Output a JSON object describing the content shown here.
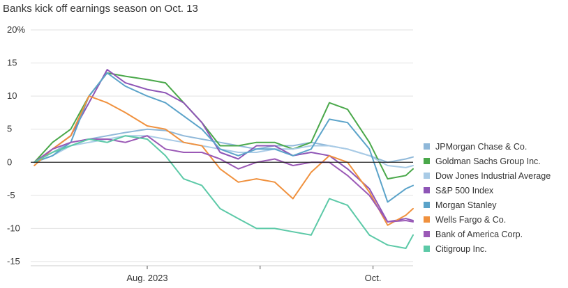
{
  "chart_data": {
    "type": "line",
    "title": "Banks kick off earnings season on Oct. 13",
    "xlabel": "",
    "ylabel": "",
    "ylim": [
      -15,
      20
    ],
    "y_ticks": [
      {
        "value": 20,
        "label": "20%"
      },
      {
        "value": 15,
        "label": "15"
      },
      {
        "value": 10,
        "label": "10"
      },
      {
        "value": 5,
        "label": "5"
      },
      {
        "value": 0,
        "label": "0"
      },
      {
        "value": -5,
        "label": "-5"
      },
      {
        "value": -10,
        "label": "-10"
      },
      {
        "value": -15,
        "label": "-15"
      }
    ],
    "x_range": [
      "2023-06-30",
      "2023-10-13"
    ],
    "x_ticks": [
      {
        "date": "2023-08-01",
        "label": "Aug. 2023"
      },
      {
        "date": "2023-09-01",
        "label": ""
      },
      {
        "date": "2023-10-02",
        "label": "Oct."
      }
    ],
    "grid": "horizontal",
    "legend": "right",
    "series": [
      {
        "name": "JPMorgan Chase & Co.",
        "color": "#8fb8d9",
        "points": [
          [
            "2023-07-01",
            0
          ],
          [
            "2023-07-06",
            1.5
          ],
          [
            "2023-07-11",
            3
          ],
          [
            "2023-07-16",
            3.5
          ],
          [
            "2023-07-21",
            4
          ],
          [
            "2023-07-26",
            4.5
          ],
          [
            "2023-08-01",
            5
          ],
          [
            "2023-08-06",
            4.8
          ],
          [
            "2023-08-11",
            4
          ],
          [
            "2023-08-16",
            3.5
          ],
          [
            "2023-08-21",
            3
          ],
          [
            "2023-08-26",
            2.5
          ],
          [
            "2023-08-31",
            2
          ],
          [
            "2023-09-05",
            2.5
          ],
          [
            "2023-09-10",
            2.5
          ],
          [
            "2023-09-15",
            3
          ],
          [
            "2023-09-20",
            2.5
          ],
          [
            "2023-09-25",
            2
          ],
          [
            "2023-10-01",
            1
          ],
          [
            "2023-10-06",
            0
          ],
          [
            "2023-10-11",
            0.5
          ],
          [
            "2023-10-13",
            0.8
          ]
        ]
      },
      {
        "name": "Goldman Sachs Group Inc.",
        "color": "#4aa84a",
        "points": [
          [
            "2023-07-01",
            0
          ],
          [
            "2023-07-06",
            3
          ],
          [
            "2023-07-11",
            5
          ],
          [
            "2023-07-16",
            10
          ],
          [
            "2023-07-21",
            13.5
          ],
          [
            "2023-07-26",
            13
          ],
          [
            "2023-08-01",
            12.5
          ],
          [
            "2023-08-06",
            12
          ],
          [
            "2023-08-11",
            9
          ],
          [
            "2023-08-16",
            6
          ],
          [
            "2023-08-21",
            2.5
          ],
          [
            "2023-08-26",
            2.5
          ],
          [
            "2023-08-31",
            3
          ],
          [
            "2023-09-05",
            3
          ],
          [
            "2023-09-10",
            2
          ],
          [
            "2023-09-15",
            3
          ],
          [
            "2023-09-20",
            9
          ],
          [
            "2023-09-25",
            8
          ],
          [
            "2023-10-01",
            3
          ],
          [
            "2023-10-06",
            -2.5
          ],
          [
            "2023-10-11",
            -2
          ],
          [
            "2023-10-13",
            -1
          ]
        ]
      },
      {
        "name": "Dow Jones Industrial Average",
        "color": "#a9cbe6",
        "points": [
          [
            "2023-07-01",
            0
          ],
          [
            "2023-07-06",
            1
          ],
          [
            "2023-07-11",
            2.5
          ],
          [
            "2023-07-16",
            3
          ],
          [
            "2023-07-21",
            3.5
          ],
          [
            "2023-07-26",
            4
          ],
          [
            "2023-08-01",
            4
          ],
          [
            "2023-08-06",
            3.5
          ],
          [
            "2023-08-11",
            3
          ],
          [
            "2023-08-16",
            2.5
          ],
          [
            "2023-08-21",
            2
          ],
          [
            "2023-08-26",
            1.5
          ],
          [
            "2023-08-31",
            1.5
          ],
          [
            "2023-09-05",
            2
          ],
          [
            "2023-09-10",
            2
          ],
          [
            "2023-09-15",
            2.5
          ],
          [
            "2023-09-20",
            2.5
          ],
          [
            "2023-09-25",
            2
          ],
          [
            "2023-10-01",
            1
          ],
          [
            "2023-10-06",
            -0.5
          ],
          [
            "2023-10-11",
            -0.8
          ],
          [
            "2023-10-13",
            -0.5
          ]
        ]
      },
      {
        "name": "S&P 500 Index",
        "color": "#8e55b6",
        "points": [
          [
            "2023-07-01",
            0
          ],
          [
            "2023-07-06",
            2
          ],
          [
            "2023-07-11",
            4
          ],
          [
            "2023-07-16",
            9
          ],
          [
            "2023-07-21",
            14
          ],
          [
            "2023-07-26",
            12
          ],
          [
            "2023-08-01",
            11
          ],
          [
            "2023-08-06",
            10.5
          ],
          [
            "2023-08-11",
            9
          ],
          [
            "2023-08-16",
            6
          ],
          [
            "2023-08-21",
            1.5
          ],
          [
            "2023-08-26",
            0.5
          ],
          [
            "2023-08-31",
            2.5
          ],
          [
            "2023-09-05",
            2.5
          ],
          [
            "2023-09-10",
            1
          ],
          [
            "2023-09-15",
            1.5
          ],
          [
            "2023-09-20",
            1
          ],
          [
            "2023-09-25",
            -1
          ],
          [
            "2023-10-01",
            -4
          ],
          [
            "2023-10-06",
            -9
          ],
          [
            "2023-10-11",
            -8.5
          ],
          [
            "2023-10-13",
            -8.8
          ]
        ]
      },
      {
        "name": "Morgan Stanley",
        "color": "#5ba3c9",
        "points": [
          [
            "2023-07-01",
            0
          ],
          [
            "2023-07-06",
            1
          ],
          [
            "2023-07-11",
            3
          ],
          [
            "2023-07-16",
            10
          ],
          [
            "2023-07-21",
            13.5
          ],
          [
            "2023-07-26",
            11.5
          ],
          [
            "2023-08-01",
            10
          ],
          [
            "2023-08-06",
            9
          ],
          [
            "2023-08-11",
            7
          ],
          [
            "2023-08-16",
            5
          ],
          [
            "2023-08-21",
            2
          ],
          [
            "2023-08-26",
            1
          ],
          [
            "2023-08-31",
            2
          ],
          [
            "2023-09-05",
            2
          ],
          [
            "2023-09-10",
            1
          ],
          [
            "2023-09-15",
            2
          ],
          [
            "2023-09-20",
            6.5
          ],
          [
            "2023-09-25",
            6
          ],
          [
            "2023-10-01",
            2
          ],
          [
            "2023-10-06",
            -6
          ],
          [
            "2023-10-11",
            -4
          ],
          [
            "2023-10-13",
            -3.5
          ]
        ]
      },
      {
        "name": "Wells Fargo & Co.",
        "color": "#f0913e",
        "points": [
          [
            "2023-07-01",
            -0.5
          ],
          [
            "2023-07-06",
            2
          ],
          [
            "2023-07-11",
            4
          ],
          [
            "2023-07-16",
            10
          ],
          [
            "2023-07-21",
            9
          ],
          [
            "2023-07-26",
            7.5
          ],
          [
            "2023-08-01",
            5.5
          ],
          [
            "2023-08-06",
            5
          ],
          [
            "2023-08-11",
            3
          ],
          [
            "2023-08-16",
            2.5
          ],
          [
            "2023-08-21",
            -1
          ],
          [
            "2023-08-26",
            -3
          ],
          [
            "2023-08-31",
            -2.5
          ],
          [
            "2023-09-05",
            -3
          ],
          [
            "2023-09-10",
            -5.5
          ],
          [
            "2023-09-15",
            -1.5
          ],
          [
            "2023-09-20",
            1
          ],
          [
            "2023-09-25",
            0
          ],
          [
            "2023-10-01",
            -4.5
          ],
          [
            "2023-10-06",
            -9.5
          ],
          [
            "2023-10-11",
            -8
          ],
          [
            "2023-10-13",
            -7
          ]
        ]
      },
      {
        "name": "Bank of America Corp.",
        "color": "#9b59b6",
        "points": [
          [
            "2023-07-01",
            0
          ],
          [
            "2023-07-06",
            2
          ],
          [
            "2023-07-11",
            3
          ],
          [
            "2023-07-16",
            3.5
          ],
          [
            "2023-07-21",
            3.5
          ],
          [
            "2023-07-26",
            3
          ],
          [
            "2023-08-01",
            4
          ],
          [
            "2023-08-06",
            2
          ],
          [
            "2023-08-11",
            1.5
          ],
          [
            "2023-08-16",
            1.5
          ],
          [
            "2023-08-21",
            0.5
          ],
          [
            "2023-08-26",
            -1
          ],
          [
            "2023-08-31",
            0
          ],
          [
            "2023-09-05",
            0.5
          ],
          [
            "2023-09-10",
            -0.5
          ],
          [
            "2023-09-15",
            0
          ],
          [
            "2023-09-20",
            0
          ],
          [
            "2023-09-25",
            -2
          ],
          [
            "2023-10-01",
            -5
          ],
          [
            "2023-10-06",
            -9
          ],
          [
            "2023-10-11",
            -8.8
          ],
          [
            "2023-10-13",
            -9
          ]
        ]
      },
      {
        "name": "Citigroup Inc.",
        "color": "#5cc9a7",
        "points": [
          [
            "2023-07-01",
            0
          ],
          [
            "2023-07-06",
            1.5
          ],
          [
            "2023-07-11",
            2.5
          ],
          [
            "2023-07-16",
            3.5
          ],
          [
            "2023-07-21",
            3
          ],
          [
            "2023-07-26",
            4
          ],
          [
            "2023-08-01",
            3.5
          ],
          [
            "2023-08-06",
            1
          ],
          [
            "2023-08-11",
            -2.5
          ],
          [
            "2023-08-16",
            -3.5
          ],
          [
            "2023-08-21",
            -7
          ],
          [
            "2023-08-26",
            -8.5
          ],
          [
            "2023-08-31",
            -10
          ],
          [
            "2023-09-05",
            -10
          ],
          [
            "2023-09-10",
            -10.5
          ],
          [
            "2023-09-15",
            -11
          ],
          [
            "2023-09-20",
            -5.5
          ],
          [
            "2023-09-25",
            -6.5
          ],
          [
            "2023-10-01",
            -11
          ],
          [
            "2023-10-06",
            -12.5
          ],
          [
            "2023-10-11",
            -13
          ],
          [
            "2023-10-13",
            -11
          ]
        ]
      }
    ]
  }
}
